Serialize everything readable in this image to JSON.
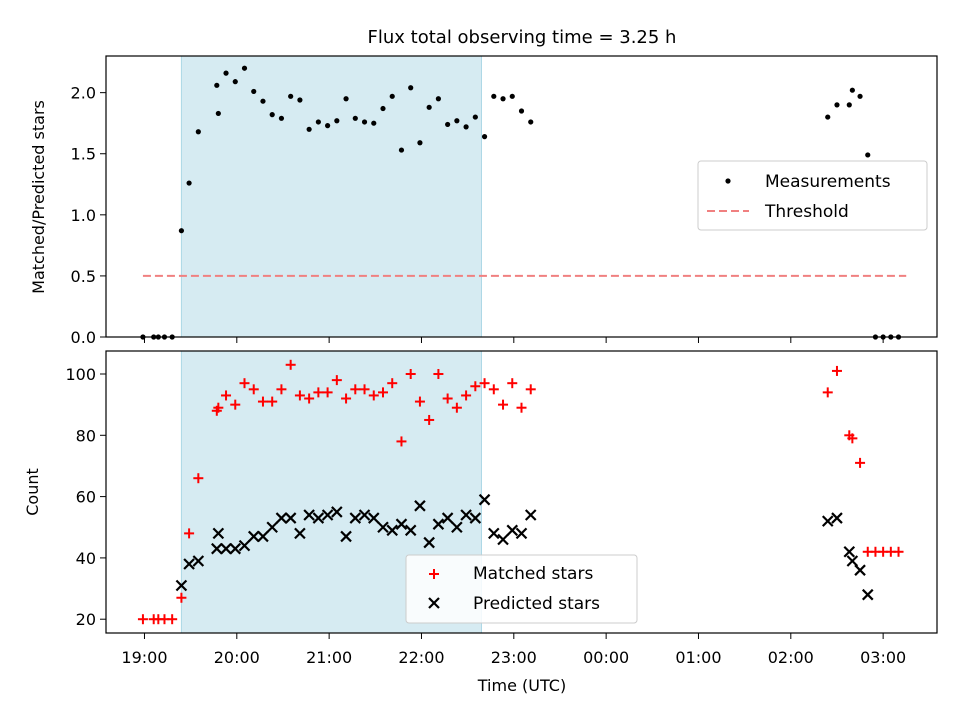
{
  "chart_data": [
    {
      "type": "scatter",
      "title": "Flux total observing time = 3.25 h",
      "xlabel": "",
      "ylabel": "Matched/Predicted stars",
      "x_unit": "time (UTC)",
      "xlim": [
        "2000-01-01T18:35",
        "2000-01-02T03:35"
      ],
      "ylim": [
        0,
        2.3
      ],
      "yticks": [
        0.0,
        0.5,
        1.0,
        1.5,
        2.0
      ],
      "ytick_labels": [
        "0.0",
        "0.5",
        "1.0",
        "1.5",
        "2.0"
      ],
      "grid": false,
      "legend": "center-right",
      "shaded_span": [
        "2000-01-01T19:24",
        "2000-01-01T22:39"
      ],
      "shaded_color": "#add8e6",
      "threshold": {
        "name": "Threshold",
        "value": 0.5,
        "range": [
          "2000-01-01T18:59",
          "2000-01-02T03:15"
        ],
        "color": "#f08080",
        "style": "dashed"
      },
      "series": [
        {
          "name": "Measurements",
          "marker": "dot",
          "color": "#000000",
          "points": [
            [
              "2000-01-01T18:59",
              0
            ],
            [
              "2000-01-01T19:06",
              0
            ],
            [
              "2000-01-01T19:09",
              0
            ],
            [
              "2000-01-01T19:13",
              0
            ],
            [
              "2000-01-01T19:18",
              0
            ],
            [
              "2000-01-01T19:24",
              0.87
            ],
            [
              "2000-01-01T19:29",
              1.26
            ],
            [
              "2000-01-01T19:35",
              1.68
            ],
            [
              "2000-01-01T19:47",
              2.06
            ],
            [
              "2000-01-01T19:48",
              1.83
            ],
            [
              "2000-01-01T19:53",
              2.16
            ],
            [
              "2000-01-01T19:59",
              2.09
            ],
            [
              "2000-01-01T20:05",
              2.2
            ],
            [
              "2000-01-01T20:11",
              2.01
            ],
            [
              "2000-01-01T20:17",
              1.93
            ],
            [
              "2000-01-01T20:23",
              1.82
            ],
            [
              "2000-01-01T20:29",
              1.79
            ],
            [
              "2000-01-01T20:35",
              1.97
            ],
            [
              "2000-01-01T20:41",
              1.94
            ],
            [
              "2000-01-01T20:47",
              1.7
            ],
            [
              "2000-01-01T20:53",
              1.76
            ],
            [
              "2000-01-01T20:59",
              1.73
            ],
            [
              "2000-01-01T21:05",
              1.77
            ],
            [
              "2000-01-01T21:11",
              1.95
            ],
            [
              "2000-01-01T21:17",
              1.79
            ],
            [
              "2000-01-01T21:23",
              1.76
            ],
            [
              "2000-01-01T21:29",
              1.75
            ],
            [
              "2000-01-01T21:35",
              1.87
            ],
            [
              "2000-01-01T21:41",
              1.97
            ],
            [
              "2000-01-01T21:47",
              1.53
            ],
            [
              "2000-01-01T21:53",
              2.04
            ],
            [
              "2000-01-01T21:59",
              1.59
            ],
            [
              "2000-01-01T22:05",
              1.88
            ],
            [
              "2000-01-01T22:11",
              1.95
            ],
            [
              "2000-01-01T22:17",
              1.74
            ],
            [
              "2000-01-01T22:23",
              1.77
            ],
            [
              "2000-01-01T22:29",
              1.72
            ],
            [
              "2000-01-01T22:35",
              1.8
            ],
            [
              "2000-01-01T22:41",
              1.64
            ],
            [
              "2000-01-01T22:47",
              1.97
            ],
            [
              "2000-01-01T22:53",
              1.95
            ],
            [
              "2000-01-01T22:59",
              1.97
            ],
            [
              "2000-01-01T23:05",
              1.85
            ],
            [
              "2000-01-01T23:11",
              1.76
            ],
            [
              "2000-01-02T02:24",
              1.8
            ],
            [
              "2000-01-02T02:30",
              1.9
            ],
            [
              "2000-01-02T02:38",
              1.9
            ],
            [
              "2000-01-02T02:40",
              2.02
            ],
            [
              "2000-01-02T02:45",
              1.97
            ],
            [
              "2000-01-02T02:50",
              1.49
            ],
            [
              "2000-01-02T02:55",
              0
            ],
            [
              "2000-01-02T03:00",
              0
            ],
            [
              "2000-01-02T03:05",
              0
            ],
            [
              "2000-01-02T03:10",
              0
            ]
          ]
        }
      ]
    },
    {
      "type": "scatter",
      "title": "",
      "xlabel": "Time (UTC)",
      "ylabel": "Count",
      "x_unit": "time (UTC)",
      "xlim": [
        "2000-01-01T18:35",
        "2000-01-02T03:35"
      ],
      "ylim": [
        15.5,
        107.5
      ],
      "yticks": [
        20,
        40,
        60,
        80,
        100
      ],
      "ytick_labels": [
        "20",
        "40",
        "60",
        "80",
        "100"
      ],
      "xticks": [
        "2000-01-01T19:00",
        "2000-01-01T20:00",
        "2000-01-01T21:00",
        "2000-01-01T22:00",
        "2000-01-01T23:00",
        "2000-01-02T00:00",
        "2000-01-02T01:00",
        "2000-01-02T02:00",
        "2000-01-02T03:00"
      ],
      "xtick_labels": [
        "19:00",
        "20:00",
        "21:00",
        "22:00",
        "23:00",
        "00:00",
        "01:00",
        "02:00",
        "03:00"
      ],
      "grid": false,
      "legend": "bottom-center",
      "shaded_span": [
        "2000-01-01T19:24",
        "2000-01-01T22:39"
      ],
      "shaded_color": "#add8e6",
      "series": [
        {
          "name": "Matched stars",
          "marker": "plus",
          "color": "#ff0000",
          "points": [
            [
              "2000-01-01T18:59",
              20
            ],
            [
              "2000-01-01T19:06",
              20
            ],
            [
              "2000-01-01T19:09",
              20
            ],
            [
              "2000-01-01T19:13",
              20
            ],
            [
              "2000-01-01T19:18",
              20
            ],
            [
              "2000-01-01T19:24",
              27
            ],
            [
              "2000-01-01T19:29",
              48
            ],
            [
              "2000-01-01T19:35",
              66
            ],
            [
              "2000-01-01T19:47",
              88
            ],
            [
              "2000-01-01T19:48",
              89
            ],
            [
              "2000-01-01T19:53",
              93
            ],
            [
              "2000-01-01T19:59",
              90
            ],
            [
              "2000-01-01T20:05",
              97
            ],
            [
              "2000-01-01T20:11",
              95
            ],
            [
              "2000-01-01T20:17",
              91
            ],
            [
              "2000-01-01T20:23",
              91
            ],
            [
              "2000-01-01T20:29",
              95
            ],
            [
              "2000-01-01T20:35",
              103
            ],
            [
              "2000-01-01T20:41",
              93
            ],
            [
              "2000-01-01T20:47",
              92
            ],
            [
              "2000-01-01T20:53",
              94
            ],
            [
              "2000-01-01T20:59",
              94
            ],
            [
              "2000-01-01T21:05",
              98
            ],
            [
              "2000-01-01T21:11",
              92
            ],
            [
              "2000-01-01T21:17",
              95
            ],
            [
              "2000-01-01T21:23",
              95
            ],
            [
              "2000-01-01T21:29",
              93
            ],
            [
              "2000-01-01T21:35",
              94
            ],
            [
              "2000-01-01T21:41",
              97
            ],
            [
              "2000-01-01T21:47",
              78
            ],
            [
              "2000-01-01T21:53",
              100
            ],
            [
              "2000-01-01T21:59",
              91
            ],
            [
              "2000-01-01T22:05",
              85
            ],
            [
              "2000-01-01T22:11",
              100
            ],
            [
              "2000-01-01T22:17",
              92
            ],
            [
              "2000-01-01T22:23",
              89
            ],
            [
              "2000-01-01T22:29",
              93
            ],
            [
              "2000-01-01T22:35",
              96
            ],
            [
              "2000-01-01T22:41",
              97
            ],
            [
              "2000-01-01T22:47",
              95
            ],
            [
              "2000-01-01T22:53",
              90
            ],
            [
              "2000-01-01T22:59",
              97
            ],
            [
              "2000-01-01T23:05",
              89
            ],
            [
              "2000-01-01T23:11",
              95
            ],
            [
              "2000-01-02T02:24",
              94
            ],
            [
              "2000-01-02T02:30",
              101
            ],
            [
              "2000-01-02T02:38",
              80
            ],
            [
              "2000-01-02T02:40",
              79
            ],
            [
              "2000-01-02T02:45",
              71
            ],
            [
              "2000-01-02T02:50",
              42
            ],
            [
              "2000-01-02T02:55",
              42
            ],
            [
              "2000-01-02T03:00",
              42
            ],
            [
              "2000-01-02T03:05",
              42
            ],
            [
              "2000-01-02T03:10",
              42
            ]
          ]
        },
        {
          "name": "Predicted stars",
          "marker": "x",
          "color": "#000000",
          "points": [
            [
              "2000-01-01T19:24",
              31
            ],
            [
              "2000-01-01T19:29",
              38
            ],
            [
              "2000-01-01T19:35",
              39
            ],
            [
              "2000-01-01T19:47",
              43
            ],
            [
              "2000-01-01T19:48",
              48
            ],
            [
              "2000-01-01T19:53",
              43
            ],
            [
              "2000-01-01T19:59",
              43
            ],
            [
              "2000-01-01T20:05",
              44
            ],
            [
              "2000-01-01T20:11",
              47
            ],
            [
              "2000-01-01T20:17",
              47
            ],
            [
              "2000-01-01T20:23",
              50
            ],
            [
              "2000-01-01T20:29",
              53
            ],
            [
              "2000-01-01T20:35",
              53
            ],
            [
              "2000-01-01T20:41",
              48
            ],
            [
              "2000-01-01T20:47",
              54
            ],
            [
              "2000-01-01T20:53",
              53
            ],
            [
              "2000-01-01T20:59",
              54
            ],
            [
              "2000-01-01T21:05",
              55
            ],
            [
              "2000-01-01T21:11",
              47
            ],
            [
              "2000-01-01T21:17",
              53
            ],
            [
              "2000-01-01T21:23",
              54
            ],
            [
              "2000-01-01T21:29",
              53
            ],
            [
              "2000-01-01T21:35",
              50
            ],
            [
              "2000-01-01T21:41",
              49
            ],
            [
              "2000-01-01T21:47",
              51
            ],
            [
              "2000-01-01T21:53",
              49
            ],
            [
              "2000-01-01T21:59",
              57
            ],
            [
              "2000-01-01T22:05",
              45
            ],
            [
              "2000-01-01T22:11",
              51
            ],
            [
              "2000-01-01T22:17",
              53
            ],
            [
              "2000-01-01T22:23",
              50
            ],
            [
              "2000-01-01T22:29",
              54
            ],
            [
              "2000-01-01T22:35",
              53
            ],
            [
              "2000-01-01T22:41",
              59
            ],
            [
              "2000-01-01T22:47",
              48
            ],
            [
              "2000-01-01T22:53",
              46
            ],
            [
              "2000-01-01T22:59",
              49
            ],
            [
              "2000-01-01T23:05",
              48
            ],
            [
              "2000-01-01T23:11",
              54
            ],
            [
              "2000-01-02T02:24",
              52
            ],
            [
              "2000-01-02T02:30",
              53
            ],
            [
              "2000-01-02T02:38",
              42
            ],
            [
              "2000-01-02T02:40",
              39
            ],
            [
              "2000-01-02T02:45",
              36
            ],
            [
              "2000-01-02T02:50",
              28
            ]
          ]
        }
      ]
    }
  ]
}
